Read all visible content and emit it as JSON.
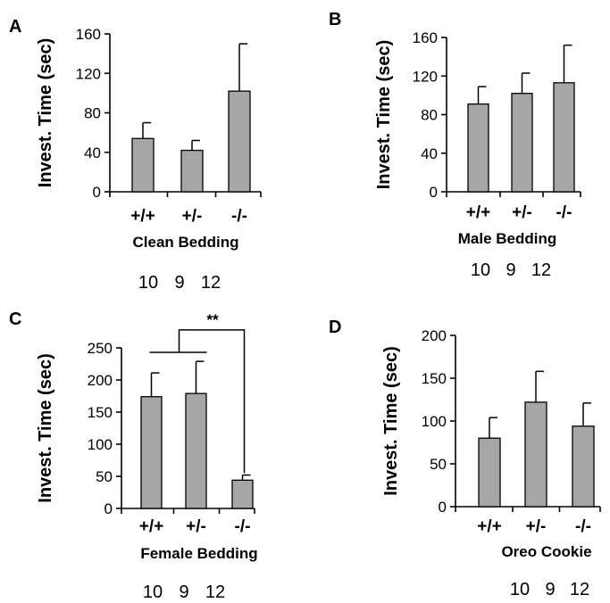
{
  "chart_data": [
    {
      "type": "bar",
      "panel": "A",
      "ylabel": "Invest. Time (sec)",
      "xlabel": "Clean Bedding",
      "categories": [
        "+/+",
        "+/-",
        "-/-"
      ],
      "values": [
        54,
        42,
        102
      ],
      "errors": [
        16,
        10,
        48
      ],
      "ylim": [
        0,
        160
      ],
      "yticks": [
        "0",
        "40",
        "80",
        "120",
        "160"
      ],
      "counts": [
        "10",
        "9",
        "12"
      ]
    },
    {
      "type": "bar",
      "panel": "B",
      "ylabel": "Invest. Time (sec)",
      "xlabel": "Male Bedding",
      "categories": [
        "+/+",
        "+/-",
        "-/-"
      ],
      "values": [
        91,
        102,
        113
      ],
      "errors": [
        18,
        21,
        39
      ],
      "ylim": [
        0,
        160
      ],
      "yticks": [
        "0",
        "40",
        "80",
        "120",
        "160"
      ],
      "counts": [
        "10",
        "9",
        "12"
      ]
    },
    {
      "type": "bar",
      "panel": "C",
      "ylabel": "Invest. Time (sec)",
      "xlabel": "Female Bedding",
      "categories": [
        "+/+",
        "+/-",
        "-/-"
      ],
      "values": [
        174,
        179,
        44
      ],
      "errors": [
        37,
        50,
        8
      ],
      "ylim": [
        0,
        250
      ],
      "yticks": [
        "0",
        "50",
        "100",
        "150",
        "200",
        "250"
      ],
      "counts": [
        "10",
        "9",
        "12"
      ],
      "annotation": "**"
    },
    {
      "type": "bar",
      "panel": "D",
      "ylabel": "Invest. Time (sec)",
      "xlabel": "Oreo Cookie",
      "categories": [
        "+/+",
        "+/-",
        "-/-"
      ],
      "values": [
        80,
        122,
        94
      ],
      "errors": [
        24,
        36,
        27
      ],
      "ylim": [
        0,
        200
      ],
      "yticks": [
        "0",
        "50",
        "100",
        "150",
        "200"
      ],
      "counts": [
        "10",
        "9",
        "12"
      ]
    }
  ]
}
